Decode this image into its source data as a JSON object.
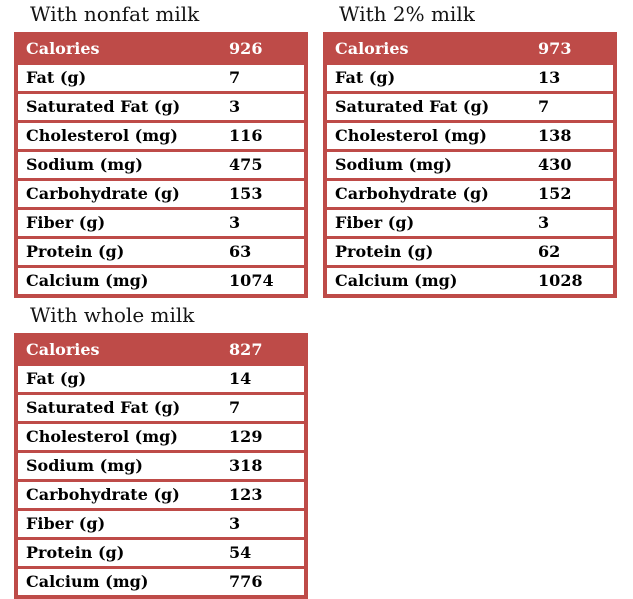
{
  "page": {
    "background_color": "#FFFFFF",
    "accent_red": "#BE4B48",
    "header_text_color": "#FFFFFF",
    "body_text_color": "#000000"
  },
  "tables": [
    {
      "title": "With nonfat milk",
      "header": {
        "label": "Calories",
        "value": "926"
      },
      "rows": [
        {
          "label": "Fat (g)",
          "value": "7"
        },
        {
          "label": "Saturated Fat (g)",
          "value": "3"
        },
        {
          "label": "Cholesterol (mg)",
          "value": "116"
        },
        {
          "label": "Sodium (mg)",
          "value": "475"
        },
        {
          "label": "Carbohydrate (g)",
          "value": "153"
        },
        {
          "label": "Fiber (g)",
          "value": "3"
        },
        {
          "label": "Protein (g)",
          "value": "63"
        },
        {
          "label": "Calcium (mg)",
          "value": "1074"
        }
      ]
    },
    {
      "title": "With 2% milk",
      "header": {
        "label": "Calories",
        "value": "973"
      },
      "rows": [
        {
          "label": "Fat (g)",
          "value": "13"
        },
        {
          "label": "Saturated Fat (g)",
          "value": "7"
        },
        {
          "label": "Cholesterol (mg)",
          "value": "138"
        },
        {
          "label": "Sodium (mg)",
          "value": "430"
        },
        {
          "label": "Carbohydrate (g)",
          "value": "152"
        },
        {
          "label": "Fiber (g)",
          "value": "3"
        },
        {
          "label": "Protein (g)",
          "value": "62"
        },
        {
          "label": "Calcium (mg)",
          "value": "1028"
        }
      ]
    },
    {
      "title": "With whole milk",
      "header": {
        "label": "Calories",
        "value": "827"
      },
      "rows": [
        {
          "label": "Fat (g)",
          "value": "14"
        },
        {
          "label": "Saturated Fat (g)",
          "value": "7"
        },
        {
          "label": "Cholesterol (mg)",
          "value": "129"
        },
        {
          "label": "Sodium (mg)",
          "value": "318"
        },
        {
          "label": "Carbohydrate (g)",
          "value": "123"
        },
        {
          "label": "Fiber (g)",
          "value": "3"
        },
        {
          "label": "Protein (g)",
          "value": "54"
        },
        {
          "label": "Calcium (mg)",
          "value": "776"
        }
      ]
    }
  ]
}
